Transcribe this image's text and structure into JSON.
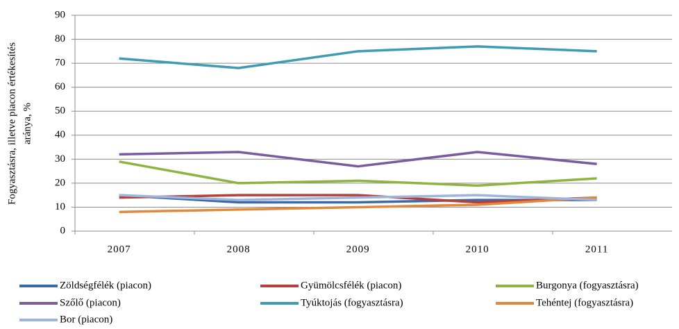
{
  "chart_data": {
    "type": "line",
    "ylabel": [
      "Fogyasztásra, illetve piacon értékesítés",
      "aránya, %"
    ],
    "categories": [
      "2007",
      "2008",
      "2009",
      "2010",
      "2011"
    ],
    "series": [
      {
        "name": "Zöldségfélék (piacon)",
        "color": "#3b68a6",
        "values": [
          15,
          12,
          12,
          13,
          13
        ]
      },
      {
        "name": "Gyümölcsfélék (piacon)",
        "color": "#b5403b",
        "values": [
          14,
          15,
          15,
          12,
          14
        ]
      },
      {
        "name": "Burgonya (fogyasztásra)",
        "color": "#8db441",
        "values": [
          29,
          20,
          21,
          19,
          22
        ]
      },
      {
        "name": "Szőlő (piacon)",
        "color": "#7b5b9d",
        "values": [
          32,
          33,
          27,
          33,
          28
        ]
      },
      {
        "name": "Tyúktojás (fogyasztásra)",
        "color": "#3f9bb1",
        "values": [
          72,
          68,
          75,
          77,
          75
        ]
      },
      {
        "name": "Tehéntej (fogyasztásra)",
        "color": "#e3873b",
        "values": [
          8,
          9,
          10,
          11,
          14
        ]
      },
      {
        "name": "Bor (piacon)",
        "color": "#9db5dd",
        "values": [
          15,
          13,
          14,
          15,
          13
        ]
      }
    ],
    "ylim": [
      0,
      90
    ],
    "yticks": [
      0,
      10,
      20,
      30,
      40,
      50,
      60,
      70,
      80,
      90
    ],
    "grid": true
  }
}
